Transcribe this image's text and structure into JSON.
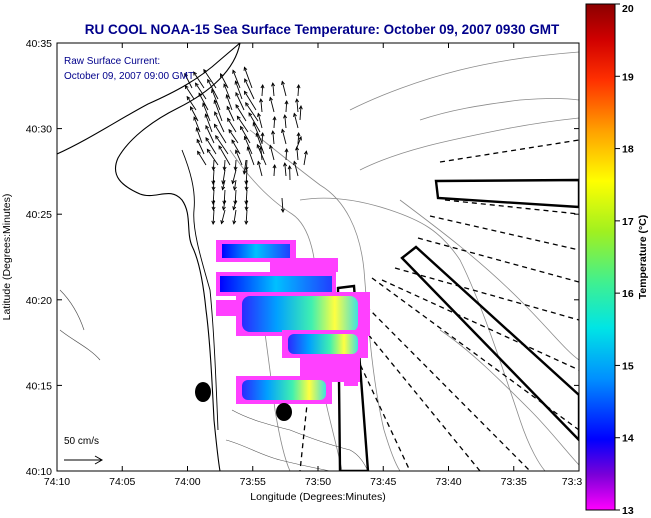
{
  "title": "RU COOL  NOAA-15  Sea Surface Temperature:  October 09, 2007 0930 GMT",
  "inset": {
    "line1": "Raw Surface Current:",
    "line2": "October 09, 2007 09:00 GMT"
  },
  "scale_label": "50 cm/s",
  "x_axis": {
    "label": "Longitude (Degrees:Minutes)",
    "ticks": [
      "74:10",
      "74:05",
      "74:00",
      "73:55",
      "73:50",
      "73:45",
      "73:40",
      "73:35",
      "73:3"
    ]
  },
  "y_axis": {
    "label": "Latitude (Degrees:Minutes)",
    "ticks": [
      "40:35",
      "40:30",
      "40:25",
      "40:20",
      "40:15",
      "40:10"
    ]
  },
  "colorbar": {
    "label": "Temperature (°C)",
    "ticks": [
      "20",
      "19",
      "18",
      "17",
      "16",
      "15",
      "14",
      "13"
    ],
    "colors": [
      "#ff00ff",
      "#6a00d8",
      "#0000ff",
      "#0090ff",
      "#00e5e5",
      "#40f090",
      "#a0f020",
      "#ffff00",
      "#ffa000",
      "#ff3000",
      "#d00000",
      "#8b0000"
    ]
  }
}
